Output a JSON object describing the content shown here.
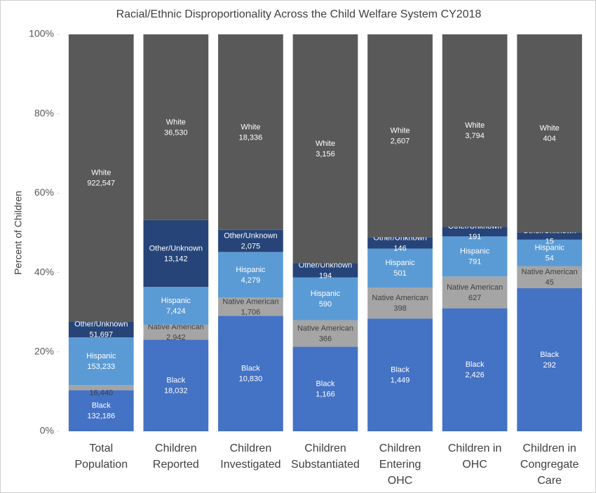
{
  "chart_data": {
    "type": "bar",
    "stacked": "percent",
    "title": "Racial/Ethnic Disproportionality Across the Child Welfare System CY2018",
    "y_label": "Percent of Children",
    "categories": [
      "Total Population",
      "Children Reported",
      "Children Investigated",
      "Children Substantiated",
      "Children Entering OHC",
      "Children in OHC",
      "Children in Congregate Care"
    ],
    "series": [
      {
        "name": "Black",
        "color": "#4472c4",
        "values": [
          132186,
          18032,
          10830,
          1166,
          1449,
          2426,
          292
        ],
        "value_labels": [
          "132,186",
          "18,032",
          "10,830",
          "1,166",
          "1,449",
          "2,426",
          "292"
        ]
      },
      {
        "name": "Native American",
        "color": "#a5a5a5",
        "values": [
          16440,
          2942,
          1706,
          366,
          398,
          627,
          45
        ],
        "value_labels": [
          "16,440",
          "2,942",
          "1,706",
          "366",
          "398",
          "627",
          "45"
        ]
      },
      {
        "name": "Hispanic",
        "color": "#5b9bd5",
        "values": [
          153233,
          7424,
          4279,
          590,
          501,
          791,
          54
        ],
        "value_labels": [
          "153,233",
          "7,424",
          "4,279",
          "590",
          "501",
          "791",
          "54"
        ]
      },
      {
        "name": "Other/Unknown",
        "color": "#264478",
        "values": [
          51697,
          13142,
          2075,
          194,
          146,
          191,
          15
        ],
        "value_labels": [
          "51,697",
          "13,142",
          "2,075",
          "194",
          "146",
          "191",
          "15"
        ]
      },
      {
        "name": "White",
        "color": "#595959",
        "values": [
          922547,
          36530,
          18336,
          3156,
          2607,
          3794,
          404
        ],
        "value_labels": [
          "922,547",
          "36,530",
          "18,336",
          "3,156",
          "2,607",
          "3,794",
          "404"
        ]
      }
    ],
    "ylim": [
      0,
      100
    ],
    "yticks": [
      {
        "value": 0,
        "label": "0%"
      },
      {
        "value": 20,
        "label": "20%"
      },
      {
        "value": 40,
        "label": "40%"
      },
      {
        "value": 60,
        "label": "60%"
      },
      {
        "value": 80,
        "label": "80%"
      },
      {
        "value": 100,
        "label": "100%"
      }
    ]
  }
}
